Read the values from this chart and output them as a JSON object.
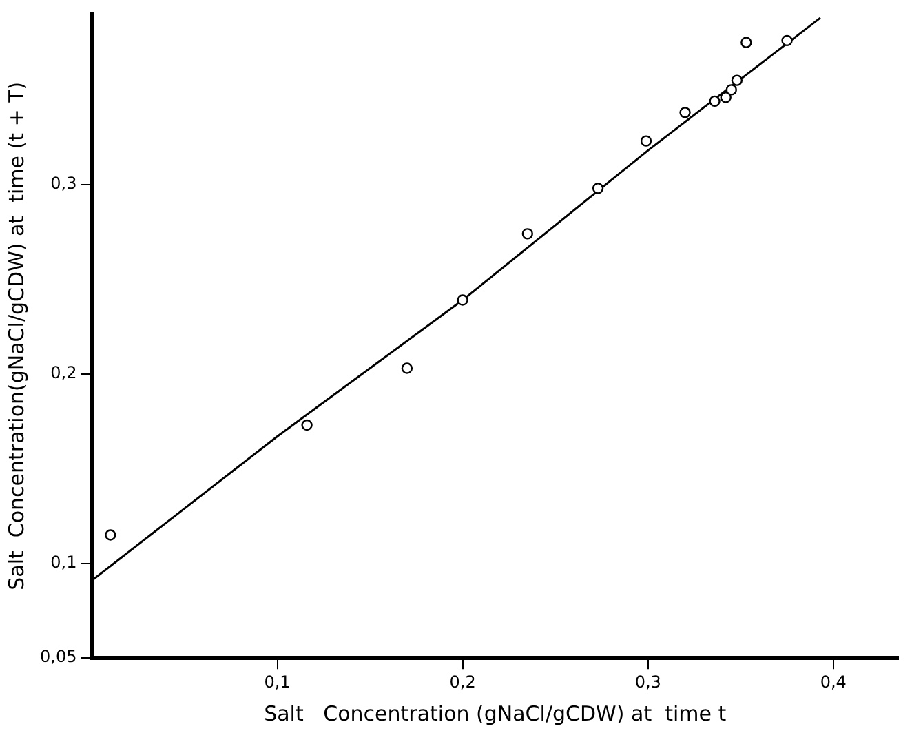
{
  "chart_data": {
    "type": "scatter",
    "xlabel": "Salt   Concentration (gNaCl/gCDW) at  time t",
    "ylabel": "Salt  Concentration(gNaCl/gCDW) at  time (t + T)",
    "xlim": [
      0,
      0.435
    ],
    "ylim": [
      0.05,
      0.39
    ],
    "xticks": [
      {
        "value": 0.1,
        "label": "0,1"
      },
      {
        "value": 0.2,
        "label": "0,2"
      },
      {
        "value": 0.3,
        "label": "0,3"
      },
      {
        "value": 0.4,
        "label": "0,4"
      }
    ],
    "yticks": [
      {
        "value": 0.05,
        "label": "0,05"
      },
      {
        "value": 0.1,
        "label": "0,1"
      },
      {
        "value": 0.2,
        "label": "0,2"
      },
      {
        "value": 0.3,
        "label": "0,3"
      }
    ],
    "grid": false,
    "legend": false,
    "marker": "circle",
    "series": [
      {
        "color": "#000000",
        "x": [
          0.01,
          0.116,
          0.17,
          0.2,
          0.235,
          0.273,
          0.299,
          0.32,
          0.336,
          0.342,
          0.345,
          0.348,
          0.353,
          0.375
        ],
        "values": [
          0.115,
          0.173,
          0.203,
          0.239,
          0.274,
          0.298,
          0.323,
          0.338,
          0.344,
          0.346,
          0.35,
          0.355,
          0.375,
          0.376
        ]
      },
      {
        "type": "line",
        "color": "#000000",
        "line_style": "solid",
        "marker": "none",
        "x": [
          0,
          0.1,
          0.2,
          0.3,
          0.393
        ],
        "values": [
          0.091,
          0.167,
          0.239,
          0.318,
          0.388
        ]
      }
    ]
  }
}
